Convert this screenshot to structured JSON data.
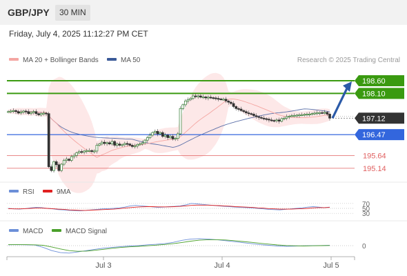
{
  "header": {
    "symbol": "GBP/JPY",
    "interval": "30 MIN",
    "datetime": "Friday, July 4, 2025 11:12:27 PM CET"
  },
  "legend": {
    "ma20": "MA 20 + Bollinger Bands",
    "ma50": "MA 50",
    "credit": "Research © 2025 Trading Central",
    "rsi": "RSI",
    "rsi_ma": "9MA",
    "macd": "MACD",
    "macd_signal": "MACD Signal"
  },
  "colors": {
    "ma20": "#f4a6a2",
    "ma50": "#5a6fa8",
    "bollinger_fill": "#fde6e5",
    "candle": "#2f7a2f",
    "target": "#3a9a10",
    "pivot": "#3366dd",
    "support": "#e06060",
    "current": "#333333",
    "arrow": "#2b5aa8",
    "rsi": "#6c8fd8",
    "rsi_ma": "#e02020",
    "macd": "#6c8fd8",
    "macd_signal": "#4aa02a"
  },
  "chart_data": [
    {
      "type": "candlestick",
      "x_labels": [
        "Jul 3",
        "Jul 4",
        "Jul 5"
      ],
      "ylim": [
        194.7,
        199.2
      ],
      "levels": [
        {
          "value": 198.6,
          "label": "198.60",
          "kind": "target"
        },
        {
          "value": 198.1,
          "label": "198.10",
          "kind": "target"
        },
        {
          "value": 196.47,
          "label": "196.47",
          "kind": "pivot"
        },
        {
          "value": 195.64,
          "label": "195.64",
          "kind": "support"
        },
        {
          "value": 195.14,
          "label": "195.14",
          "kind": "support"
        }
      ],
      "current_price": {
        "value": 197.12,
        "label": "197.12"
      },
      "close_series": [
        197.38,
        197.4,
        197.42,
        197.38,
        197.32,
        197.36,
        197.4,
        197.38,
        197.3,
        197.35,
        197.38,
        197.3,
        197.25,
        197.3,
        197.32,
        197.3,
        195.2,
        195.05,
        195.4,
        195.28,
        195.05,
        195.3,
        195.45,
        195.5,
        195.45,
        195.6,
        195.65,
        195.75,
        195.8,
        195.77,
        195.82,
        195.84,
        195.84,
        195.8,
        195.82,
        196.05,
        196.1,
        196.17,
        196.12,
        196.15,
        196.1,
        196.2,
        196.05,
        196.1,
        196.05,
        196.07,
        196.12,
        196.1,
        196.05,
        196.0,
        196.02,
        196.08,
        196.1,
        196.15,
        196.25,
        196.35,
        196.45,
        196.55,
        196.6,
        196.5,
        196.55,
        196.4,
        196.45,
        196.35,
        196.4,
        196.3,
        196.32,
        196.5,
        197.5,
        197.65,
        197.8,
        197.85,
        197.9,
        198.0,
        197.98,
        198.0,
        197.95,
        197.96,
        197.92,
        197.95,
        197.93,
        197.92,
        197.9,
        197.88,
        197.87,
        197.87,
        197.8,
        197.75,
        197.7,
        197.58,
        197.5,
        197.48,
        197.42,
        197.38,
        197.33,
        197.3,
        197.28,
        197.22,
        197.18,
        197.15,
        197.12,
        197.1,
        197.08,
        197.05,
        197.03,
        197.02,
        197.05,
        197.0,
        197.1,
        197.12,
        197.18,
        197.2,
        197.22,
        197.22,
        197.24,
        197.25,
        197.25,
        197.27,
        197.28,
        197.28,
        197.3,
        197.32,
        197.33,
        197.34,
        197.33,
        197.35,
        197.28,
        197.12
      ],
      "forecast": {
        "from": 197.12,
        "to": 198.6
      }
    },
    {
      "type": "line",
      "name": "RSI",
      "levels": [
        70,
        50,
        30
      ],
      "ylim": [
        0,
        100
      ],
      "series": [
        {
          "name": "RSI",
          "values": [
            50,
            48,
            47,
            49,
            52,
            54,
            53,
            50,
            48,
            45,
            44,
            42,
            41,
            40,
            42,
            44,
            46,
            48,
            49,
            50,
            52,
            55,
            60,
            62,
            60,
            58,
            56,
            54,
            55,
            57,
            58,
            60,
            64,
            70,
            68,
            66,
            64,
            62,
            60,
            58,
            57,
            55,
            54,
            53,
            52,
            50,
            48,
            46,
            45,
            44,
            46,
            48,
            50,
            52,
            55,
            57,
            55,
            53,
            55
          ]
        },
        {
          "name": "9MA",
          "values": [
            49,
            48,
            48,
            49,
            50,
            51,
            51,
            50,
            49,
            47,
            46,
            44,
            43,
            42,
            42,
            43,
            44,
            45,
            46,
            47,
            49,
            51,
            53,
            55,
            56,
            57,
            57,
            56,
            56,
            56,
            57,
            58,
            60,
            62,
            63,
            63,
            63,
            62,
            61,
            60,
            59,
            57,
            56,
            55,
            54,
            52,
            51,
            49,
            48,
            47,
            47,
            47,
            48,
            49,
            50,
            52,
            53,
            53,
            54
          ]
        }
      ]
    },
    {
      "type": "line",
      "name": "MACD",
      "levels": [
        0
      ],
      "levels_labels": [
        "0"
      ],
      "series": [
        {
          "name": "MACD",
          "values": [
            0.05,
            0.06,
            0.05,
            0.04,
            -0.1,
            -0.3,
            -0.42,
            -0.45,
            -0.38,
            -0.3,
            -0.22,
            -0.15,
            -0.1,
            -0.06,
            -0.02,
            0.0,
            0.05,
            0.08,
            0.12,
            0.2,
            0.32,
            0.4,
            0.42,
            0.4,
            0.36,
            0.3,
            0.24,
            0.18,
            0.12,
            0.06,
            0.02,
            -0.02,
            -0.04,
            -0.03,
            -0.01,
            0.0,
            0.01,
            0.02
          ]
        },
        {
          "name": "MACD Signal",
          "values": [
            0.06,
            0.06,
            0.06,
            0.05,
            0.02,
            -0.08,
            -0.2,
            -0.3,
            -0.34,
            -0.33,
            -0.28,
            -0.22,
            -0.16,
            -0.11,
            -0.07,
            -0.04,
            -0.01,
            0.03,
            0.07,
            0.12,
            0.19,
            0.27,
            0.33,
            0.36,
            0.36,
            0.34,
            0.3,
            0.25,
            0.2,
            0.14,
            0.09,
            0.04,
            0.01,
            -0.01,
            -0.02,
            -0.01,
            0.0,
            0.01
          ]
        }
      ]
    }
  ]
}
